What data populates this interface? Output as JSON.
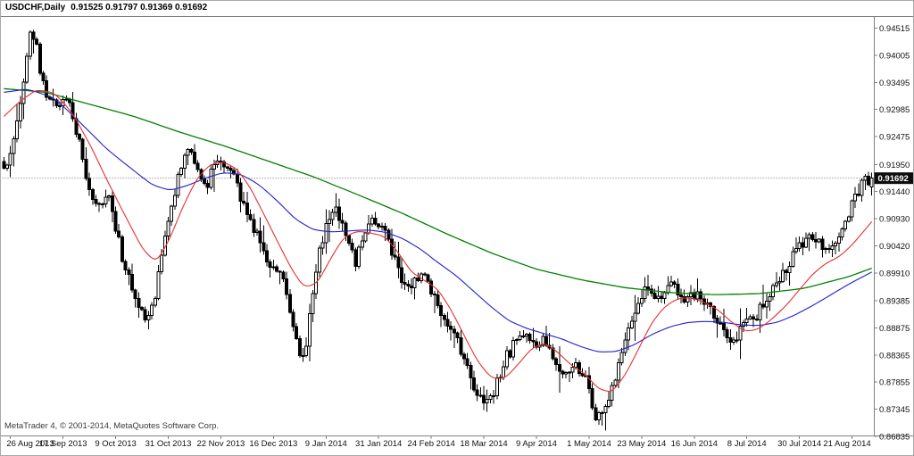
{
  "chart": {
    "symbol_label": "USDCHF,Daily",
    "quotes": "0.91525 0.91797 0.91369 0.91692",
    "copyright": "MetaTrader 4, © 2001-2014, MetaQuotes Software Corp.",
    "current_price_label": "0.91692"
  },
  "chart_data": {
    "type": "candlestick",
    "symbol": "USDCHF",
    "timeframe": "Daily",
    "last_bar": {
      "open": 0.91525,
      "high": 0.91797,
      "low": 0.91369,
      "close": 0.91692
    },
    "current_price": 0.91692,
    "bars_count": 265,
    "y_axis": {
      "min": 0.86835,
      "max": 0.94515,
      "ticks": [
        "0.94515",
        "0.94005",
        "0.93495",
        "0.92985",
        "0.92475",
        "0.91950",
        "0.91440",
        "0.90930",
        "0.90420",
        "0.89910",
        "0.89385",
        "0.88875",
        "0.88365",
        "0.87855",
        "0.87345",
        "0.86835"
      ]
    },
    "x_axis": {
      "first_tick_bar": 2,
      "bar_interval": 16,
      "ticks": [
        "26 Aug 2013",
        "17 Sep 2013",
        "9 Oct 2013",
        "31 Oct 2013",
        "22 Nov 2013",
        "16 Dec 2013",
        "9 Jan 2014",
        "31 Jan 2014",
        "24 Feb 2014",
        "18 Mar 2014",
        "9 Apr 2014",
        "1 May 2014",
        "23 May 2014",
        "16 Jun 2014",
        "8 Jul 2014",
        "30 Jul 2014",
        "21 Aug 2014"
      ]
    },
    "price_path_anchors": [
      [
        0,
        0.917
      ],
      [
        8,
        0.9195
      ],
      [
        18,
        0.9265
      ],
      [
        27,
        0.938
      ],
      [
        34,
        0.9445
      ],
      [
        40,
        0.9415
      ],
      [
        47,
        0.9345
      ],
      [
        57,
        0.9303
      ],
      [
        66,
        0.9315
      ],
      [
        75,
        0.9317
      ],
      [
        87,
        0.9245
      ],
      [
        100,
        0.9135
      ],
      [
        112,
        0.9115
      ],
      [
        122,
        0.914
      ],
      [
        130,
        0.9063
      ],
      [
        140,
        0.8995
      ],
      [
        152,
        0.893
      ],
      [
        163,
        0.89
      ],
      [
        172,
        0.8945
      ],
      [
        182,
        0.904
      ],
      [
        194,
        0.913
      ],
      [
        203,
        0.92
      ],
      [
        212,
        0.9233
      ],
      [
        222,
        0.918
      ],
      [
        232,
        0.916
      ],
      [
        242,
        0.921
      ],
      [
        252,
        0.9195
      ],
      [
        262,
        0.9165
      ],
      [
        272,
        0.9115
      ],
      [
        282,
        0.908
      ],
      [
        294,
        0.903
      ],
      [
        305,
        0.8995
      ],
      [
        315,
        0.8985
      ],
      [
        325,
        0.89
      ],
      [
        333,
        0.8845
      ],
      [
        339,
        0.8825
      ],
      [
        348,
        0.893
      ],
      [
        357,
        0.903
      ],
      [
        365,
        0.909
      ],
      [
        375,
        0.9115
      ],
      [
        386,
        0.906
      ],
      [
        397,
        0.901
      ],
      [
        408,
        0.9075
      ],
      [
        419,
        0.9095
      ],
      [
        431,
        0.906
      ],
      [
        445,
        0.8995
      ],
      [
        458,
        0.896
      ],
      [
        472,
        0.9
      ],
      [
        484,
        0.8955
      ],
      [
        496,
        0.8905
      ],
      [
        508,
        0.887
      ],
      [
        519,
        0.8835
      ],
      [
        530,
        0.8775
      ],
      [
        541,
        0.874
      ],
      [
        552,
        0.876
      ],
      [
        563,
        0.8825
      ],
      [
        575,
        0.8855
      ],
      [
        587,
        0.888
      ],
      [
        598,
        0.8855
      ],
      [
        609,
        0.887
      ],
      [
        621,
        0.8825
      ],
      [
        632,
        0.879
      ],
      [
        643,
        0.882
      ],
      [
        654,
        0.8795
      ],
      [
        665,
        0.8725
      ],
      [
        677,
        0.873
      ],
      [
        688,
        0.8795
      ],
      [
        700,
        0.887
      ],
      [
        711,
        0.8925
      ],
      [
        722,
        0.8955
      ],
      [
        736,
        0.8945
      ],
      [
        750,
        0.897
      ],
      [
        765,
        0.894
      ],
      [
        780,
        0.8952
      ],
      [
        795,
        0.8925
      ],
      [
        808,
        0.8885
      ],
      [
        820,
        0.8862
      ],
      [
        832,
        0.889
      ],
      [
        846,
        0.891
      ],
      [
        860,
        0.8945
      ],
      [
        876,
        0.899
      ],
      [
        890,
        0.9028
      ],
      [
        905,
        0.9058
      ],
      [
        920,
        0.9042
      ],
      [
        933,
        0.9035
      ],
      [
        945,
        0.908
      ],
      [
        957,
        0.9135
      ],
      [
        966,
        0.916
      ],
      [
        976,
        0.91692
      ]
    ],
    "moving_averages": [
      {
        "name": "slow",
        "color": "#008000",
        "width": 1.3,
        "anchors": [
          [
            0,
            0.9338
          ],
          [
            50,
            0.9331
          ],
          [
            100,
            0.9308
          ],
          [
            150,
            0.9285
          ],
          [
            200,
            0.9256
          ],
          [
            250,
            0.923
          ],
          [
            300,
            0.9201
          ],
          [
            350,
            0.9172
          ],
          [
            400,
            0.9138
          ],
          [
            450,
            0.9103
          ],
          [
            500,
            0.9064
          ],
          [
            550,
            0.9028
          ],
          [
            600,
            0.8998
          ],
          [
            650,
            0.8978
          ],
          [
            700,
            0.8963
          ],
          [
            750,
            0.8954
          ],
          [
            800,
            0.895
          ],
          [
            850,
            0.8952
          ],
          [
            900,
            0.8962
          ],
          [
            950,
            0.8984
          ],
          [
            976,
            0.9
          ]
        ]
      },
      {
        "name": "medium",
        "color": "#2020cc",
        "width": 1.1,
        "anchors": [
          [
            0,
            0.933
          ],
          [
            30,
            0.9337
          ],
          [
            60,
            0.932
          ],
          [
            90,
            0.9272
          ],
          [
            120,
            0.9222
          ],
          [
            150,
            0.9182
          ],
          [
            170,
            0.9156
          ],
          [
            190,
            0.9146
          ],
          [
            210,
            0.9156
          ],
          [
            230,
            0.917
          ],
          [
            250,
            0.918
          ],
          [
            270,
            0.9176
          ],
          [
            290,
            0.9156
          ],
          [
            310,
            0.9126
          ],
          [
            330,
            0.9092
          ],
          [
            350,
            0.9072
          ],
          [
            370,
            0.9068
          ],
          [
            390,
            0.907
          ],
          [
            410,
            0.9072
          ],
          [
            430,
            0.9068
          ],
          [
            450,
            0.9056
          ],
          [
            470,
            0.9036
          ],
          [
            490,
            0.901
          ],
          [
            510,
            0.8986
          ],
          [
            530,
            0.8956
          ],
          [
            550,
            0.8926
          ],
          [
            570,
            0.89
          ],
          [
            590,
            0.8886
          ],
          [
            610,
            0.8876
          ],
          [
            630,
            0.8866
          ],
          [
            650,
            0.8852
          ],
          [
            670,
            0.8842
          ],
          [
            690,
            0.8843
          ],
          [
            710,
            0.8856
          ],
          [
            730,
            0.8876
          ],
          [
            750,
            0.889
          ],
          [
            770,
            0.8898
          ],
          [
            790,
            0.89
          ],
          [
            810,
            0.8898
          ],
          [
            830,
            0.8893
          ],
          [
            850,
            0.8892
          ],
          [
            870,
            0.8898
          ],
          [
            890,
            0.8912
          ],
          [
            910,
            0.893
          ],
          [
            930,
            0.895
          ],
          [
            950,
            0.897
          ],
          [
            976,
            0.8993
          ]
        ]
      },
      {
        "name": "fast",
        "color": "#e53030",
        "width": 1.1,
        "anchors": [
          [
            0,
            0.928
          ],
          [
            20,
            0.9312
          ],
          [
            40,
            0.9336
          ],
          [
            60,
            0.933
          ],
          [
            80,
            0.9292
          ],
          [
            100,
            0.9232
          ],
          [
            120,
            0.9162
          ],
          [
            140,
            0.9096
          ],
          [
            160,
            0.9032
          ],
          [
            175,
            0.901
          ],
          [
            190,
            0.9058
          ],
          [
            205,
            0.912
          ],
          [
            220,
            0.917
          ],
          [
            235,
            0.9196
          ],
          [
            250,
            0.92
          ],
          [
            265,
            0.9186
          ],
          [
            280,
            0.915
          ],
          [
            295,
            0.91
          ],
          [
            310,
            0.905
          ],
          [
            325,
            0.9
          ],
          [
            340,
            0.8962
          ],
          [
            355,
            0.8972
          ],
          [
            370,
            0.902
          ],
          [
            385,
            0.906
          ],
          [
            400,
            0.907
          ],
          [
            415,
            0.9066
          ],
          [
            430,
            0.906
          ],
          [
            445,
            0.903
          ],
          [
            460,
            0.8992
          ],
          [
            475,
            0.8976
          ],
          [
            490,
            0.896
          ],
          [
            505,
            0.892
          ],
          [
            520,
            0.887
          ],
          [
            535,
            0.8822
          ],
          [
            550,
            0.8792
          ],
          [
            565,
            0.8792
          ],
          [
            580,
            0.882
          ],
          [
            595,
            0.885
          ],
          [
            610,
            0.886
          ],
          [
            625,
            0.884
          ],
          [
            640,
            0.8816
          ],
          [
            655,
            0.88
          ],
          [
            670,
            0.8772
          ],
          [
            685,
            0.8766
          ],
          [
            700,
            0.88
          ],
          [
            715,
            0.885
          ],
          [
            730,
            0.89
          ],
          [
            745,
            0.893
          ],
          [
            760,
            0.8944
          ],
          [
            775,
            0.8944
          ],
          [
            790,
            0.8934
          ],
          [
            805,
            0.892
          ],
          [
            820,
            0.8896
          ],
          [
            835,
            0.888
          ],
          [
            850,
            0.8886
          ],
          [
            865,
            0.8906
          ],
          [
            880,
            0.893
          ],
          [
            895,
            0.896
          ],
          [
            910,
            0.899
          ],
          [
            925,
            0.901
          ],
          [
            940,
            0.9022
          ],
          [
            955,
            0.9046
          ],
          [
            976,
            0.9088
          ]
        ]
      }
    ],
    "colors": {
      "bull_body": "#ffffff",
      "bear_body": "#000000",
      "outline": "#000000",
      "frame": "#808080",
      "axis_text": "#111111",
      "price_line": "#707070",
      "price_tag_bg": "#0d0d0d",
      "price_tag_text": "#ffffff"
    }
  }
}
